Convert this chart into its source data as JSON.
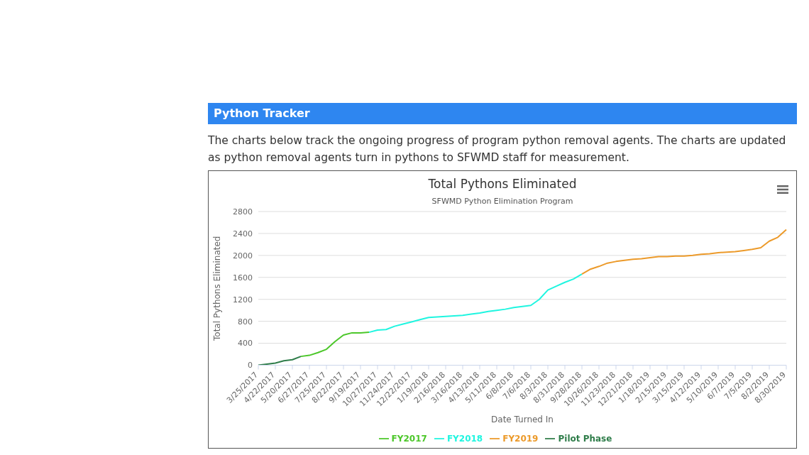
{
  "chart_data": {
    "type": "line",
    "title": "Total Pythons Eliminated",
    "subtitle": "SFWMD Python Elimination Program",
    "xlabel": "Date Turned In",
    "ylabel": "Total Pythons Eliminated",
    "annotations": [
      "Python Tracker",
      "The charts below track the ongoing progress of program python removal agents. The charts are updated as python removal agents turn in pythons to SFWMD staff for measurement."
    ],
    "categories": [
      "3/25/2017",
      null,
      "4/22/2017",
      null,
      "5/20/2017",
      null,
      "6/27/2017",
      null,
      "7/25/2017",
      null,
      "8/22/2017",
      null,
      "9/19/2017",
      null,
      "10/27/2017",
      null,
      "11/24/2017",
      null,
      "12/22/2017",
      null,
      "1/19/2018",
      null,
      "2/16/2018",
      null,
      "3/16/2018",
      null,
      "4/13/2018",
      null,
      "5/11/2018",
      null,
      "6/8/2018",
      null,
      "7/6/2018",
      null,
      "8/3/2018",
      null,
      "8/31/2018",
      null,
      "9/28/2018",
      null,
      "10/26/2018",
      null,
      "11/23/2018",
      null,
      "12/21/2018",
      null,
      "1/18/2019",
      null,
      "2/15/2019",
      null,
      "3/15/2019",
      null,
      "4/12/2019",
      null,
      "5/10/2019",
      null,
      "6/7/2019",
      null,
      "7/5/2019",
      null,
      "8/2/2019",
      null,
      "8/30/2019"
    ],
    "series": [
      {
        "name": "Pilot Phase",
        "color": "#2f7d4a",
        "values": [
          0,
          20,
          40,
          80,
          100,
          160,
          null,
          null,
          null,
          null,
          null,
          null,
          null,
          null,
          null,
          null,
          null,
          null,
          null,
          null,
          null,
          null,
          null,
          null,
          null,
          null,
          null,
          null,
          null,
          null,
          null,
          null,
          null,
          null,
          null,
          null,
          null,
          null,
          null,
          null,
          null,
          null,
          null,
          null,
          null,
          null,
          null,
          null,
          null,
          null,
          null,
          null,
          null,
          null,
          null,
          null,
          null,
          null,
          null,
          null,
          null,
          null,
          null
        ]
      },
      {
        "name": "FY2017",
        "color": "#4cc72a",
        "values": [
          null,
          null,
          null,
          null,
          null,
          160,
          180,
          230,
          290,
          430,
          550,
          590,
          590,
          600,
          null,
          null,
          null,
          null,
          null,
          null,
          null,
          null,
          null,
          null,
          null,
          null,
          null,
          null,
          null,
          null,
          null,
          null,
          null,
          null,
          null,
          null,
          null,
          null,
          null,
          null,
          null,
          null,
          null,
          null,
          null,
          null,
          null,
          null,
          null,
          null,
          null,
          null,
          null,
          null,
          null,
          null,
          null,
          null,
          null,
          null,
          null,
          null,
          null
        ]
      },
      {
        "name": "FY2018",
        "color": "#1ff5e0",
        "values": [
          null,
          null,
          null,
          null,
          null,
          null,
          null,
          null,
          null,
          null,
          null,
          null,
          null,
          600,
          640,
          650,
          710,
          750,
          790,
          830,
          870,
          880,
          890,
          900,
          910,
          930,
          950,
          980,
          1000,
          1020,
          1050,
          1070,
          1090,
          1200,
          1370,
          1440,
          1510,
          1570,
          1660,
          null,
          null,
          null,
          null,
          null,
          null,
          null,
          null,
          null,
          null,
          null,
          null,
          null,
          null,
          null,
          null,
          null,
          null,
          null,
          null,
          null,
          null,
          null,
          null
        ]
      },
      {
        "name": "FY2019",
        "color": "#ec9a2a",
        "values": [
          null,
          null,
          null,
          null,
          null,
          null,
          null,
          null,
          null,
          null,
          null,
          null,
          null,
          null,
          null,
          null,
          null,
          null,
          null,
          null,
          null,
          null,
          null,
          null,
          null,
          null,
          null,
          null,
          null,
          null,
          null,
          null,
          null,
          null,
          null,
          null,
          null,
          null,
          1660,
          1750,
          1800,
          1860,
          1890,
          1910,
          1930,
          1940,
          1960,
          1980,
          1980,
          1990,
          1990,
          2000,
          2020,
          2030,
          2050,
          2060,
          2070,
          2090,
          2110,
          2140,
          2260,
          2330,
          2470
        ]
      }
    ],
    "ylim": [
      0,
      2800
    ],
    "yticks": [
      0,
      400,
      800,
      1200,
      1600,
      2000,
      2400,
      2800
    ],
    "grid": "y",
    "legend": "bottom"
  }
}
